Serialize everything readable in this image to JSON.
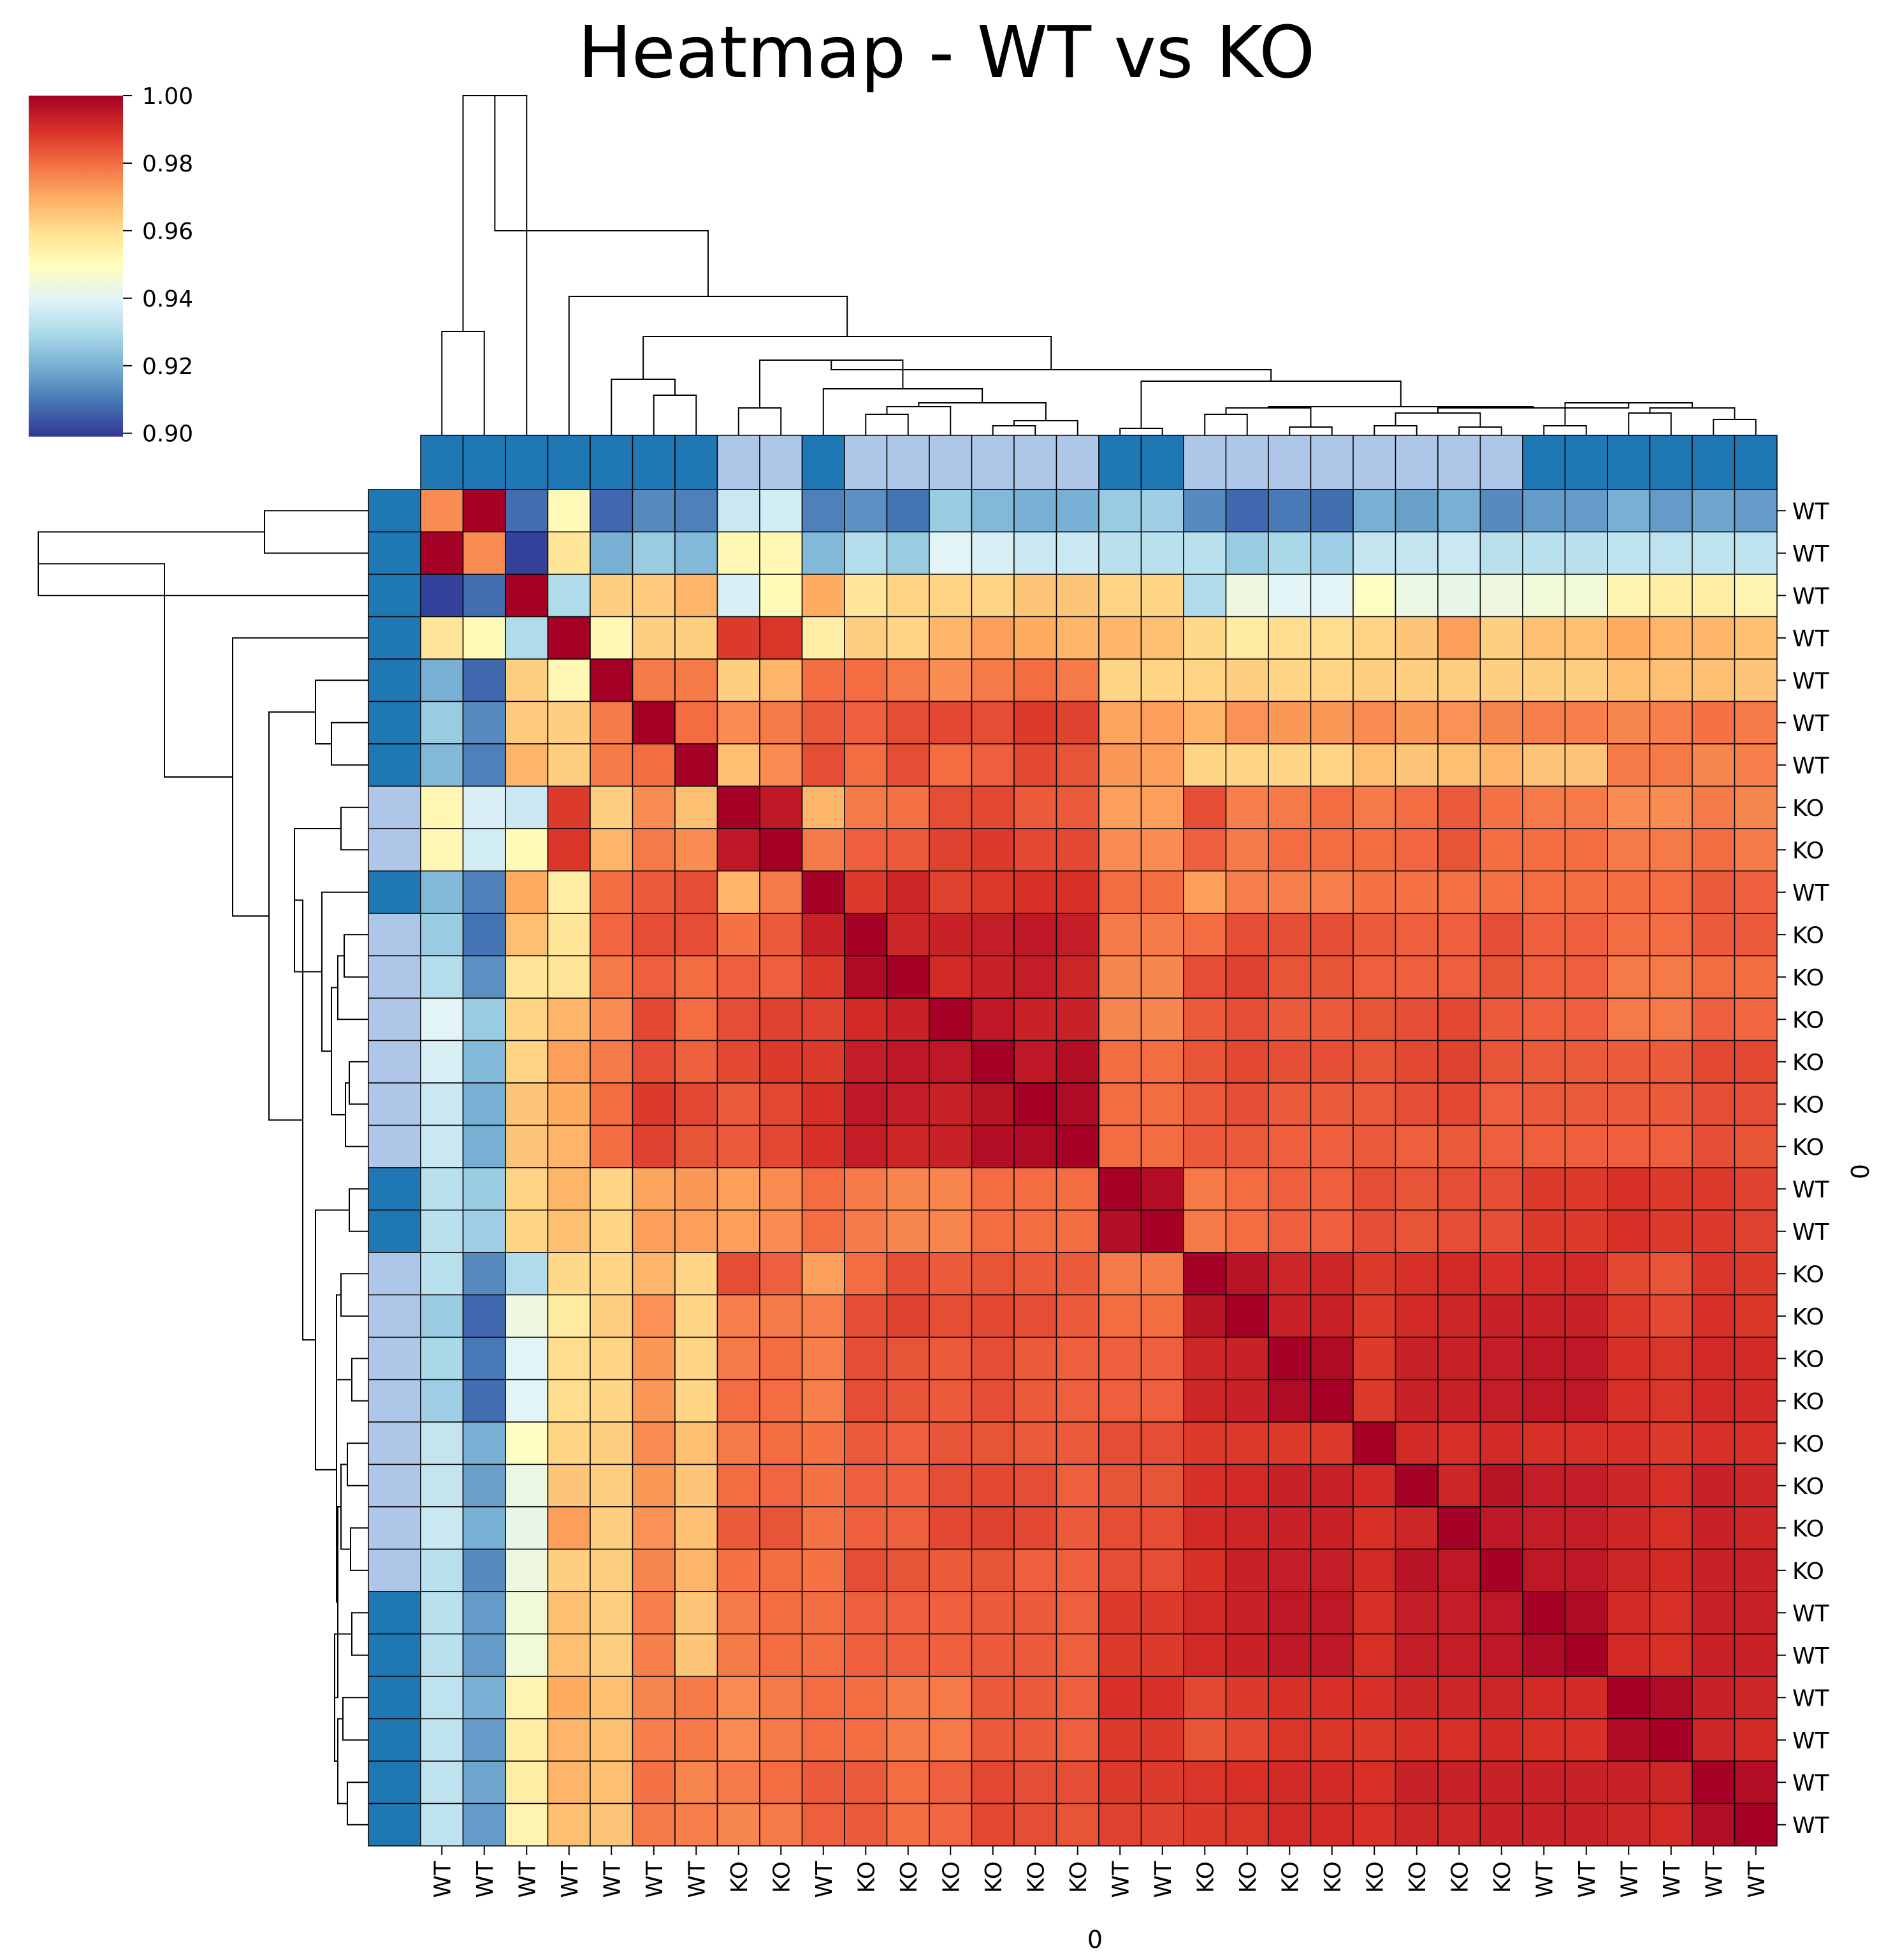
{
  "chart_data": {
    "type": "heatmap",
    "title": "Heatmap - WT vs KO",
    "xlabel": "0",
    "ylabel": "0",
    "labels": [
      "WT",
      "WT",
      "WT",
      "WT",
      "WT",
      "WT",
      "WT",
      "KO",
      "KO",
      "WT",
      "KO",
      "KO",
      "KO",
      "KO",
      "KO",
      "KO",
      "WT",
      "WT",
      "KO",
      "KO",
      "KO",
      "KO",
      "KO",
      "KO",
      "KO",
      "KO",
      "WT",
      "WT",
      "WT",
      "WT",
      "WT",
      "WT"
    ],
    "colorbar": {
      "range": [
        0.899,
        1.0
      ],
      "ticks": [
        0.9,
        0.92,
        0.94,
        0.96,
        0.98,
        1.0
      ],
      "tick_labels": [
        "0.90",
        "0.92",
        "0.94",
        "0.96",
        "0.98",
        "1.00"
      ],
      "colormap": "RdYlBu_r"
    },
    "group_colors": {
      "WT": "#1f77b4",
      "KO": "#aec7e8"
    },
    "cell_edge_color": "#000000",
    "matrix": [
      [
        0.975,
        1.0,
        0.908,
        0.951,
        0.907,
        0.913,
        0.911,
        0.935,
        0.937,
        0.911,
        0.914,
        0.909,
        0.926,
        0.922,
        0.92,
        0.92,
        0.926,
        0.927,
        0.913,
        0.907,
        0.91,
        0.908,
        0.92,
        0.917,
        0.92,
        0.913,
        0.916,
        0.916,
        0.92,
        0.916,
        0.918,
        0.916
      ],
      [
        1.0,
        0.975,
        0.901,
        0.958,
        0.92,
        0.926,
        0.922,
        0.952,
        0.952,
        0.922,
        0.931,
        0.926,
        0.94,
        0.938,
        0.935,
        0.935,
        0.932,
        0.932,
        0.932,
        0.926,
        0.929,
        0.927,
        0.934,
        0.934,
        0.935,
        0.932,
        0.932,
        0.932,
        0.933,
        0.933,
        0.933,
        0.933
      ],
      [
        0.901,
        0.908,
        1.0,
        0.93,
        0.963,
        0.964,
        0.968,
        0.938,
        0.951,
        0.97,
        0.958,
        0.962,
        0.962,
        0.962,
        0.965,
        0.965,
        0.962,
        0.962,
        0.93,
        0.944,
        0.94,
        0.94,
        0.949,
        0.943,
        0.942,
        0.944,
        0.945,
        0.945,
        0.953,
        0.955,
        0.955,
        0.953
      ],
      [
        0.958,
        0.951,
        0.93,
        1.0,
        0.952,
        0.963,
        0.963,
        0.988,
        0.989,
        0.955,
        0.963,
        0.962,
        0.968,
        0.972,
        0.97,
        0.968,
        0.968,
        0.966,
        0.961,
        0.956,
        0.96,
        0.96,
        0.962,
        0.965,
        0.972,
        0.963,
        0.966,
        0.966,
        0.97,
        0.968,
        0.968,
        0.966
      ],
      [
        0.92,
        0.907,
        0.963,
        0.952,
        1.0,
        0.978,
        0.978,
        0.963,
        0.968,
        0.98,
        0.98,
        0.978,
        0.975,
        0.978,
        0.98,
        0.978,
        0.962,
        0.962,
        0.962,
        0.963,
        0.962,
        0.962,
        0.963,
        0.963,
        0.963,
        0.963,
        0.963,
        0.963,
        0.966,
        0.966,
        0.966,
        0.965
      ],
      [
        0.926,
        0.913,
        0.964,
        0.963,
        0.978,
        1.0,
        0.98,
        0.975,
        0.978,
        0.983,
        0.982,
        0.985,
        0.986,
        0.985,
        0.988,
        0.987,
        0.971,
        0.972,
        0.968,
        0.974,
        0.973,
        0.973,
        0.975,
        0.973,
        0.974,
        0.976,
        0.977,
        0.977,
        0.976,
        0.977,
        0.979,
        0.978
      ],
      [
        0.922,
        0.911,
        0.968,
        0.963,
        0.978,
        0.98,
        1.0,
        0.966,
        0.975,
        0.985,
        0.98,
        0.985,
        0.98,
        0.982,
        0.986,
        0.984,
        0.973,
        0.972,
        0.962,
        0.962,
        0.962,
        0.962,
        0.966,
        0.965,
        0.966,
        0.968,
        0.965,
        0.965,
        0.978,
        0.978,
        0.976,
        0.977
      ],
      [
        0.952,
        0.938,
        0.935,
        0.988,
        0.963,
        0.975,
        0.966,
        1.0,
        0.995,
        0.968,
        0.978,
        0.979,
        0.985,
        0.986,
        0.983,
        0.983,
        0.972,
        0.972,
        0.985,
        0.977,
        0.978,
        0.98,
        0.978,
        0.98,
        0.983,
        0.979,
        0.978,
        0.978,
        0.975,
        0.975,
        0.978,
        0.976
      ],
      [
        0.952,
        0.937,
        0.951,
        0.989,
        0.968,
        0.978,
        0.975,
        0.995,
        1.0,
        0.978,
        0.982,
        0.983,
        0.987,
        0.988,
        0.986,
        0.986,
        0.975,
        0.975,
        0.982,
        0.978,
        0.98,
        0.98,
        0.98,
        0.981,
        0.984,
        0.98,
        0.98,
        0.98,
        0.978,
        0.978,
        0.98,
        0.978
      ],
      [
        0.922,
        0.911,
        0.97,
        0.955,
        0.98,
        0.983,
        0.985,
        0.968,
        0.978,
        1.0,
        0.988,
        0.992,
        0.987,
        0.988,
        0.99,
        0.99,
        0.98,
        0.98,
        0.972,
        0.977,
        0.977,
        0.977,
        0.979,
        0.979,
        0.979,
        0.979,
        0.98,
        0.98,
        0.98,
        0.98,
        0.983,
        0.982
      ],
      [
        0.926,
        0.909,
        0.966,
        0.958,
        0.981,
        0.985,
        0.985,
        0.979,
        0.983,
        0.993,
        1.0,
        0.992,
        0.993,
        0.994,
        0.995,
        0.994,
        0.978,
        0.978,
        0.98,
        0.985,
        0.985,
        0.985,
        0.983,
        0.982,
        0.982,
        0.985,
        0.982,
        0.982,
        0.98,
        0.98,
        0.983,
        0.983
      ],
      [
        0.931,
        0.914,
        0.958,
        0.958,
        0.978,
        0.982,
        0.98,
        0.982,
        0.982,
        0.988,
        0.998,
        1.0,
        0.991,
        0.993,
        0.994,
        0.992,
        0.976,
        0.976,
        0.985,
        0.987,
        0.984,
        0.984,
        0.982,
        0.982,
        0.982,
        0.984,
        0.982,
        0.982,
        0.978,
        0.978,
        0.98,
        0.98
      ],
      [
        0.94,
        0.926,
        0.962,
        0.968,
        0.975,
        0.986,
        0.98,
        0.985,
        0.987,
        0.987,
        0.991,
        0.993,
        1.0,
        0.995,
        0.993,
        0.993,
        0.976,
        0.976,
        0.983,
        0.985,
        0.983,
        0.983,
        0.984,
        0.985,
        0.986,
        0.983,
        0.982,
        0.982,
        0.978,
        0.978,
        0.982,
        0.981
      ],
      [
        0.938,
        0.922,
        0.962,
        0.972,
        0.978,
        0.985,
        0.982,
        0.986,
        0.988,
        0.988,
        0.994,
        0.995,
        0.995,
        1.0,
        0.995,
        0.997,
        0.98,
        0.98,
        0.984,
        0.986,
        0.985,
        0.985,
        0.984,
        0.986,
        0.987,
        0.984,
        0.983,
        0.983,
        0.983,
        0.983,
        0.986,
        0.986
      ],
      [
        0.935,
        0.92,
        0.965,
        0.97,
        0.98,
        0.988,
        0.986,
        0.983,
        0.986,
        0.99,
        0.995,
        0.994,
        0.993,
        0.996,
        1.0,
        0.998,
        0.98,
        0.98,
        0.983,
        0.985,
        0.983,
        0.983,
        0.983,
        0.985,
        0.986,
        0.982,
        0.983,
        0.983,
        0.983,
        0.983,
        0.985,
        0.985
      ],
      [
        0.935,
        0.92,
        0.965,
        0.968,
        0.98,
        0.987,
        0.984,
        0.983,
        0.986,
        0.99,
        0.994,
        0.992,
        0.993,
        0.997,
        0.998,
        1.0,
        0.98,
        0.98,
        0.983,
        0.983,
        0.982,
        0.982,
        0.983,
        0.982,
        0.983,
        0.982,
        0.982,
        0.982,
        0.982,
        0.982,
        0.985,
        0.984
      ],
      [
        0.932,
        0.926,
        0.962,
        0.968,
        0.962,
        0.971,
        0.973,
        0.972,
        0.975,
        0.98,
        0.978,
        0.976,
        0.976,
        0.98,
        0.98,
        0.98,
        1.0,
        0.997,
        0.978,
        0.98,
        0.982,
        0.982,
        0.985,
        0.984,
        0.985,
        0.985,
        0.988,
        0.988,
        0.99,
        0.988,
        0.988,
        0.987
      ],
      [
        0.932,
        0.927,
        0.962,
        0.966,
        0.962,
        0.972,
        0.972,
        0.972,
        0.975,
        0.98,
        0.978,
        0.976,
        0.976,
        0.98,
        0.98,
        0.98,
        0.997,
        1.0,
        0.978,
        0.98,
        0.982,
        0.982,
        0.985,
        0.984,
        0.985,
        0.985,
        0.988,
        0.988,
        0.99,
        0.988,
        0.988,
        0.987
      ],
      [
        0.932,
        0.913,
        0.93,
        0.961,
        0.962,
        0.968,
        0.962,
        0.985,
        0.982,
        0.972,
        0.98,
        0.985,
        0.983,
        0.984,
        0.983,
        0.983,
        0.978,
        0.978,
        1.0,
        0.996,
        0.992,
        0.992,
        0.988,
        0.99,
        0.991,
        0.99,
        0.991,
        0.991,
        0.986,
        0.984,
        0.989,
        0.988
      ],
      [
        0.926,
        0.907,
        0.944,
        0.956,
        0.963,
        0.974,
        0.962,
        0.977,
        0.978,
        0.977,
        0.985,
        0.987,
        0.985,
        0.986,
        0.985,
        0.983,
        0.98,
        0.98,
        0.996,
        1.0,
        0.993,
        0.993,
        0.988,
        0.991,
        0.992,
        0.993,
        0.993,
        0.993,
        0.988,
        0.986,
        0.99,
        0.989
      ],
      [
        0.929,
        0.91,
        0.94,
        0.96,
        0.962,
        0.973,
        0.962,
        0.978,
        0.98,
        0.977,
        0.985,
        0.984,
        0.983,
        0.985,
        0.983,
        0.982,
        0.982,
        0.982,
        0.992,
        0.993,
        1.0,
        0.998,
        0.988,
        0.993,
        0.993,
        0.994,
        0.995,
        0.995,
        0.99,
        0.989,
        0.991,
        0.991
      ],
      [
        0.927,
        0.908,
        0.94,
        0.96,
        0.962,
        0.973,
        0.962,
        0.98,
        0.98,
        0.977,
        0.985,
        0.984,
        0.983,
        0.985,
        0.983,
        0.982,
        0.982,
        0.982,
        0.992,
        0.993,
        0.998,
        1.0,
        0.988,
        0.993,
        0.993,
        0.994,
        0.995,
        0.995,
        0.99,
        0.989,
        0.991,
        0.991
      ],
      [
        0.934,
        0.92,
        0.949,
        0.962,
        0.963,
        0.975,
        0.966,
        0.978,
        0.98,
        0.979,
        0.983,
        0.982,
        0.984,
        0.984,
        0.983,
        0.983,
        0.985,
        0.985,
        0.988,
        0.988,
        0.988,
        0.988,
        1.0,
        0.991,
        0.99,
        0.991,
        0.99,
        0.99,
        0.99,
        0.988,
        0.99,
        0.99
      ],
      [
        0.934,
        0.917,
        0.943,
        0.965,
        0.963,
        0.973,
        0.965,
        0.98,
        0.981,
        0.979,
        0.982,
        0.982,
        0.985,
        0.986,
        0.985,
        0.982,
        0.984,
        0.984,
        0.99,
        0.991,
        0.993,
        0.993,
        0.991,
        1.0,
        0.992,
        0.996,
        0.994,
        0.994,
        0.992,
        0.99,
        0.993,
        0.992
      ],
      [
        0.935,
        0.92,
        0.942,
        0.972,
        0.963,
        0.974,
        0.966,
        0.983,
        0.984,
        0.979,
        0.982,
        0.982,
        0.986,
        0.987,
        0.986,
        0.983,
        0.985,
        0.985,
        0.991,
        0.992,
        0.993,
        0.993,
        0.99,
        0.992,
        1.0,
        0.995,
        0.994,
        0.994,
        0.992,
        0.99,
        0.993,
        0.992
      ],
      [
        0.932,
        0.913,
        0.944,
        0.963,
        0.963,
        0.976,
        0.968,
        0.979,
        0.98,
        0.979,
        0.985,
        0.984,
        0.983,
        0.984,
        0.982,
        0.982,
        0.985,
        0.985,
        0.99,
        0.993,
        0.994,
        0.994,
        0.991,
        0.996,
        0.995,
        1.0,
        0.995,
        0.995,
        0.992,
        0.991,
        0.993,
        0.993
      ],
      [
        0.932,
        0.916,
        0.945,
        0.966,
        0.963,
        0.977,
        0.965,
        0.978,
        0.98,
        0.98,
        0.982,
        0.982,
        0.982,
        0.983,
        0.983,
        0.982,
        0.988,
        0.988,
        0.991,
        0.993,
        0.995,
        0.995,
        0.99,
        0.994,
        0.994,
        0.995,
        1.0,
        0.998,
        0.991,
        0.99,
        0.993,
        0.993
      ],
      [
        0.932,
        0.916,
        0.945,
        0.966,
        0.963,
        0.977,
        0.965,
        0.978,
        0.98,
        0.98,
        0.982,
        0.982,
        0.982,
        0.983,
        0.983,
        0.982,
        0.988,
        0.988,
        0.991,
        0.993,
        0.995,
        0.995,
        0.99,
        0.994,
        0.994,
        0.995,
        0.998,
        1.0,
        0.991,
        0.99,
        0.993,
        0.993
      ],
      [
        0.933,
        0.92,
        0.953,
        0.97,
        0.966,
        0.976,
        0.978,
        0.975,
        0.978,
        0.98,
        0.98,
        0.978,
        0.978,
        0.983,
        0.983,
        0.982,
        0.99,
        0.99,
        0.986,
        0.988,
        0.99,
        0.99,
        0.99,
        0.992,
        0.992,
        0.992,
        0.991,
        0.991,
        1.0,
        0.998,
        0.993,
        0.992
      ],
      [
        0.933,
        0.916,
        0.955,
        0.968,
        0.966,
        0.977,
        0.978,
        0.975,
        0.978,
        0.98,
        0.98,
        0.978,
        0.978,
        0.983,
        0.983,
        0.982,
        0.988,
        0.988,
        0.984,
        0.986,
        0.989,
        0.989,
        0.988,
        0.99,
        0.99,
        0.991,
        0.99,
        0.99,
        0.998,
        1.0,
        0.992,
        0.991
      ],
      [
        0.933,
        0.918,
        0.955,
        0.968,
        0.966,
        0.979,
        0.976,
        0.978,
        0.98,
        0.983,
        0.983,
        0.98,
        0.982,
        0.986,
        0.985,
        0.985,
        0.988,
        0.988,
        0.989,
        0.99,
        0.991,
        0.991,
        0.99,
        0.993,
        0.993,
        0.993,
        0.993,
        0.993,
        0.993,
        0.992,
        1.0,
        0.997
      ],
      [
        0.933,
        0.916,
        0.953,
        0.966,
        0.965,
        0.978,
        0.977,
        0.976,
        0.978,
        0.982,
        0.983,
        0.98,
        0.981,
        0.986,
        0.985,
        0.984,
        0.987,
        0.987,
        0.988,
        0.989,
        0.991,
        0.991,
        0.99,
        0.992,
        0.992,
        0.993,
        0.993,
        0.993,
        0.992,
        0.991,
        0.997,
        1.0
      ]
    ]
  }
}
